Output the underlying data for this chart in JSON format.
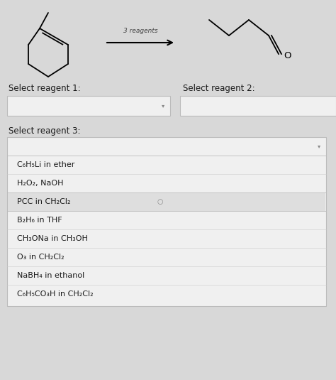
{
  "bg_color": "#d8d8d8",
  "select_reagent1_label": "Select reagent 1:",
  "select_reagent2_label": "Select reagent 2:",
  "select_reagent3_label": "Select reagent 3:",
  "dropdown_options": [
    "C₆H₅Li in ether",
    "H₂O₂, NaOH",
    "PCC in CH₂Cl₂",
    "B₂H₆ in THF",
    "CH₃ONa in CH₃OH",
    "O₃ in CH₂Cl₂",
    "NaBH₄ in ethanol",
    "C₆H₅CO₃H in CH₂Cl₂"
  ],
  "box_color": "#f0f0f0",
  "box_border_color": "#bbbbbb",
  "text_color": "#1a1a1a",
  "label_fontsize": 8.5,
  "option_fontsize": 8,
  "highlighted_row": 2,
  "arrow_label": "3 reagents",
  "figw": 4.74,
  "figh": 5.35,
  "dpi": 100
}
